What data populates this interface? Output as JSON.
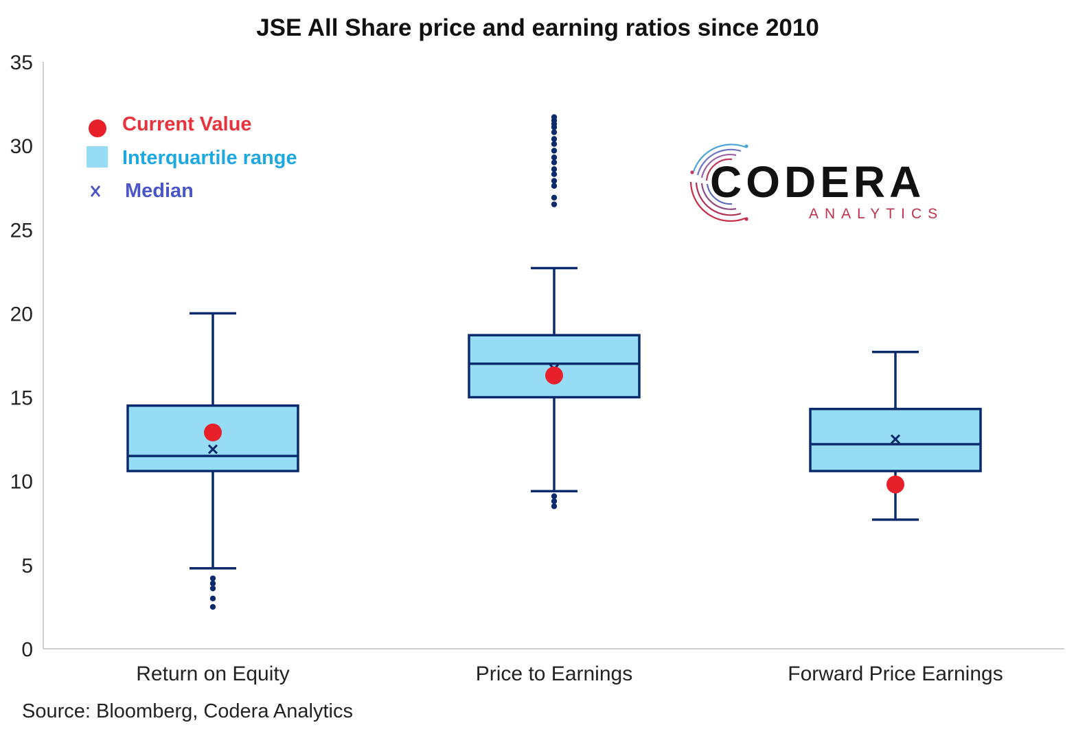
{
  "chart_data": {
    "type": "box",
    "title": "JSE All Share price and earning ratios since 2010",
    "xlabel": "",
    "ylabel": "",
    "ylim": [
      0,
      35
    ],
    "yticks": [
      0,
      5,
      10,
      15,
      20,
      25,
      30,
      35
    ],
    "grid": false,
    "legend": {
      "placement": "top-left",
      "items": [
        {
          "label": "Current Value",
          "marker": "circle",
          "color": "#e8202a"
        },
        {
          "label": "Interquartile range",
          "marker": "square",
          "color": "#9fdcf1"
        },
        {
          "label": "Median",
          "marker": "x",
          "color": "#4a55c8"
        }
      ]
    },
    "categories": [
      "Return on Equity",
      "Price to Earnings",
      "Forward Price Earnings"
    ],
    "boxes": [
      {
        "category": "Return on Equity",
        "whisker_low": 4.8,
        "q1": 10.6,
        "median": 11.5,
        "q3": 14.5,
        "whisker_high": 20.0,
        "mean": 11.9,
        "current": 12.9,
        "outliers": [
          2.5,
          3.0,
          3.6,
          3.9,
          4.2
        ]
      },
      {
        "category": "Price to Earnings",
        "whisker_low": 9.4,
        "q1": 15.0,
        "median": 17.0,
        "q3": 18.7,
        "whisker_high": 22.7,
        "mean": 16.7,
        "current": 16.3,
        "outliers": [
          8.5,
          8.8,
          9.1,
          26.5,
          26.9,
          27.6,
          27.9,
          28.3,
          28.6,
          29.0,
          29.3,
          29.7,
          30.1,
          30.4,
          30.8,
          31.1,
          31.3,
          31.5,
          31.7
        ]
      },
      {
        "category": "Forward Price Earnings",
        "whisker_low": 7.7,
        "q1": 10.6,
        "median": 12.2,
        "q3": 14.3,
        "whisker_high": 17.7,
        "mean": 12.5,
        "current": 9.8,
        "outliers": []
      }
    ],
    "colors": {
      "box_fill": "#97dcf5",
      "box_stroke": "#0b2a6b",
      "outlier": "#0b2a6b",
      "current": "#e8202a",
      "legend_current_text": "#e8323c",
      "legend_iqr_text": "#1ea8e0",
      "legend_median_text": "#4a55c8",
      "axis": "#bfbfbf"
    }
  },
  "source": "Source: Bloomberg, Codera Analytics",
  "logo": {
    "name": "CODERA",
    "subtitle": "ANALYTICS"
  }
}
